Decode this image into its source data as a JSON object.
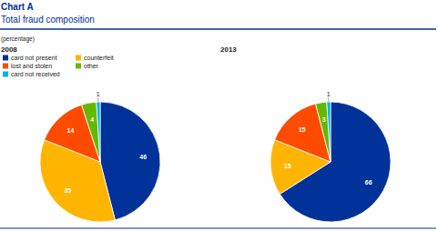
{
  "chart_data": {
    "type": "pie",
    "title": "Chart A",
    "subtitle": "Total fraud composition",
    "unit_label": "(percentage)",
    "categories": [
      "card not present",
      "counterfeit",
      "lost and stolen",
      "other",
      "card not received"
    ],
    "colors": [
      "#003299",
      "#ffb400",
      "#ff4b00",
      "#65b800",
      "#00b1ea"
    ],
    "series": [
      {
        "name": "2008",
        "values": [
          46,
          35,
          14,
          4,
          1
        ]
      },
      {
        "name": "2013",
        "values": [
          66,
          15,
          15,
          3,
          1
        ]
      }
    ],
    "data_labels": true,
    "legend": "top-left"
  }
}
